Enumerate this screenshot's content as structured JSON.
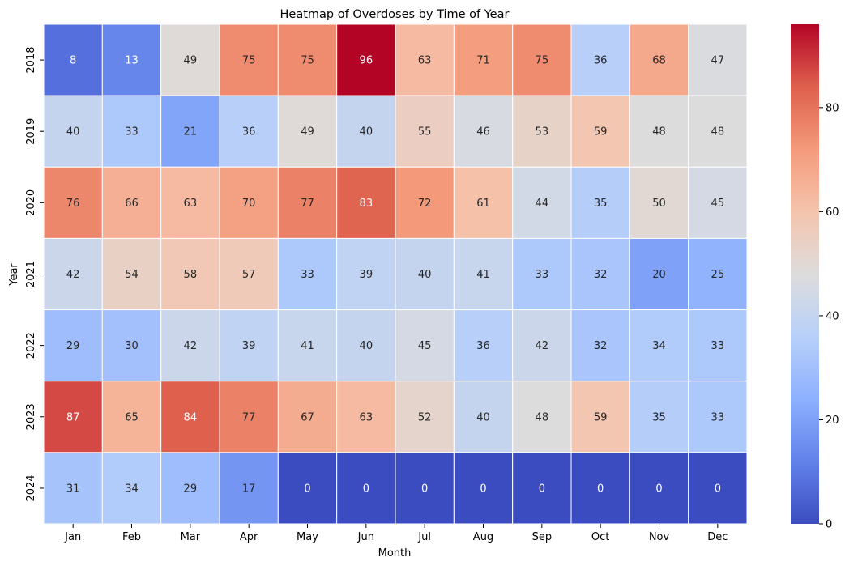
{
  "chart_data": {
    "type": "heatmap",
    "title": "Heatmap of Overdoses by Time of Year",
    "xlabel": "Month",
    "ylabel": "Year",
    "x_categories": [
      "Jan",
      "Feb",
      "Mar",
      "Apr",
      "May",
      "Jun",
      "Jul",
      "Aug",
      "Sep",
      "Oct",
      "Nov",
      "Dec"
    ],
    "y_categories": [
      "2018",
      "2019",
      "2020",
      "2021",
      "2022",
      "2023",
      "2024"
    ],
    "values": [
      [
        8,
        13,
        49,
        75,
        75,
        96,
        63,
        71,
        75,
        36,
        68,
        47
      ],
      [
        40,
        33,
        21,
        36,
        49,
        40,
        55,
        46,
        53,
        59,
        48,
        48
      ],
      [
        76,
        66,
        63,
        70,
        77,
        83,
        72,
        61,
        44,
        35,
        50,
        45
      ],
      [
        42,
        54,
        58,
        57,
        33,
        39,
        40,
        41,
        33,
        32,
        20,
        25
      ],
      [
        29,
        30,
        42,
        39,
        41,
        40,
        45,
        36,
        42,
        32,
        34,
        33
      ],
      [
        87,
        65,
        84,
        77,
        67,
        63,
        52,
        40,
        48,
        59,
        35,
        33
      ],
      [
        31,
        34,
        29,
        17,
        0,
        0,
        0,
        0,
        0,
        0,
        0,
        0
      ]
    ],
    "colormap": "coolwarm",
    "vmin": 0,
    "vmax": 96,
    "colorbar_ticks": [
      0,
      20,
      40,
      60,
      80
    ],
    "annotations": true
  }
}
